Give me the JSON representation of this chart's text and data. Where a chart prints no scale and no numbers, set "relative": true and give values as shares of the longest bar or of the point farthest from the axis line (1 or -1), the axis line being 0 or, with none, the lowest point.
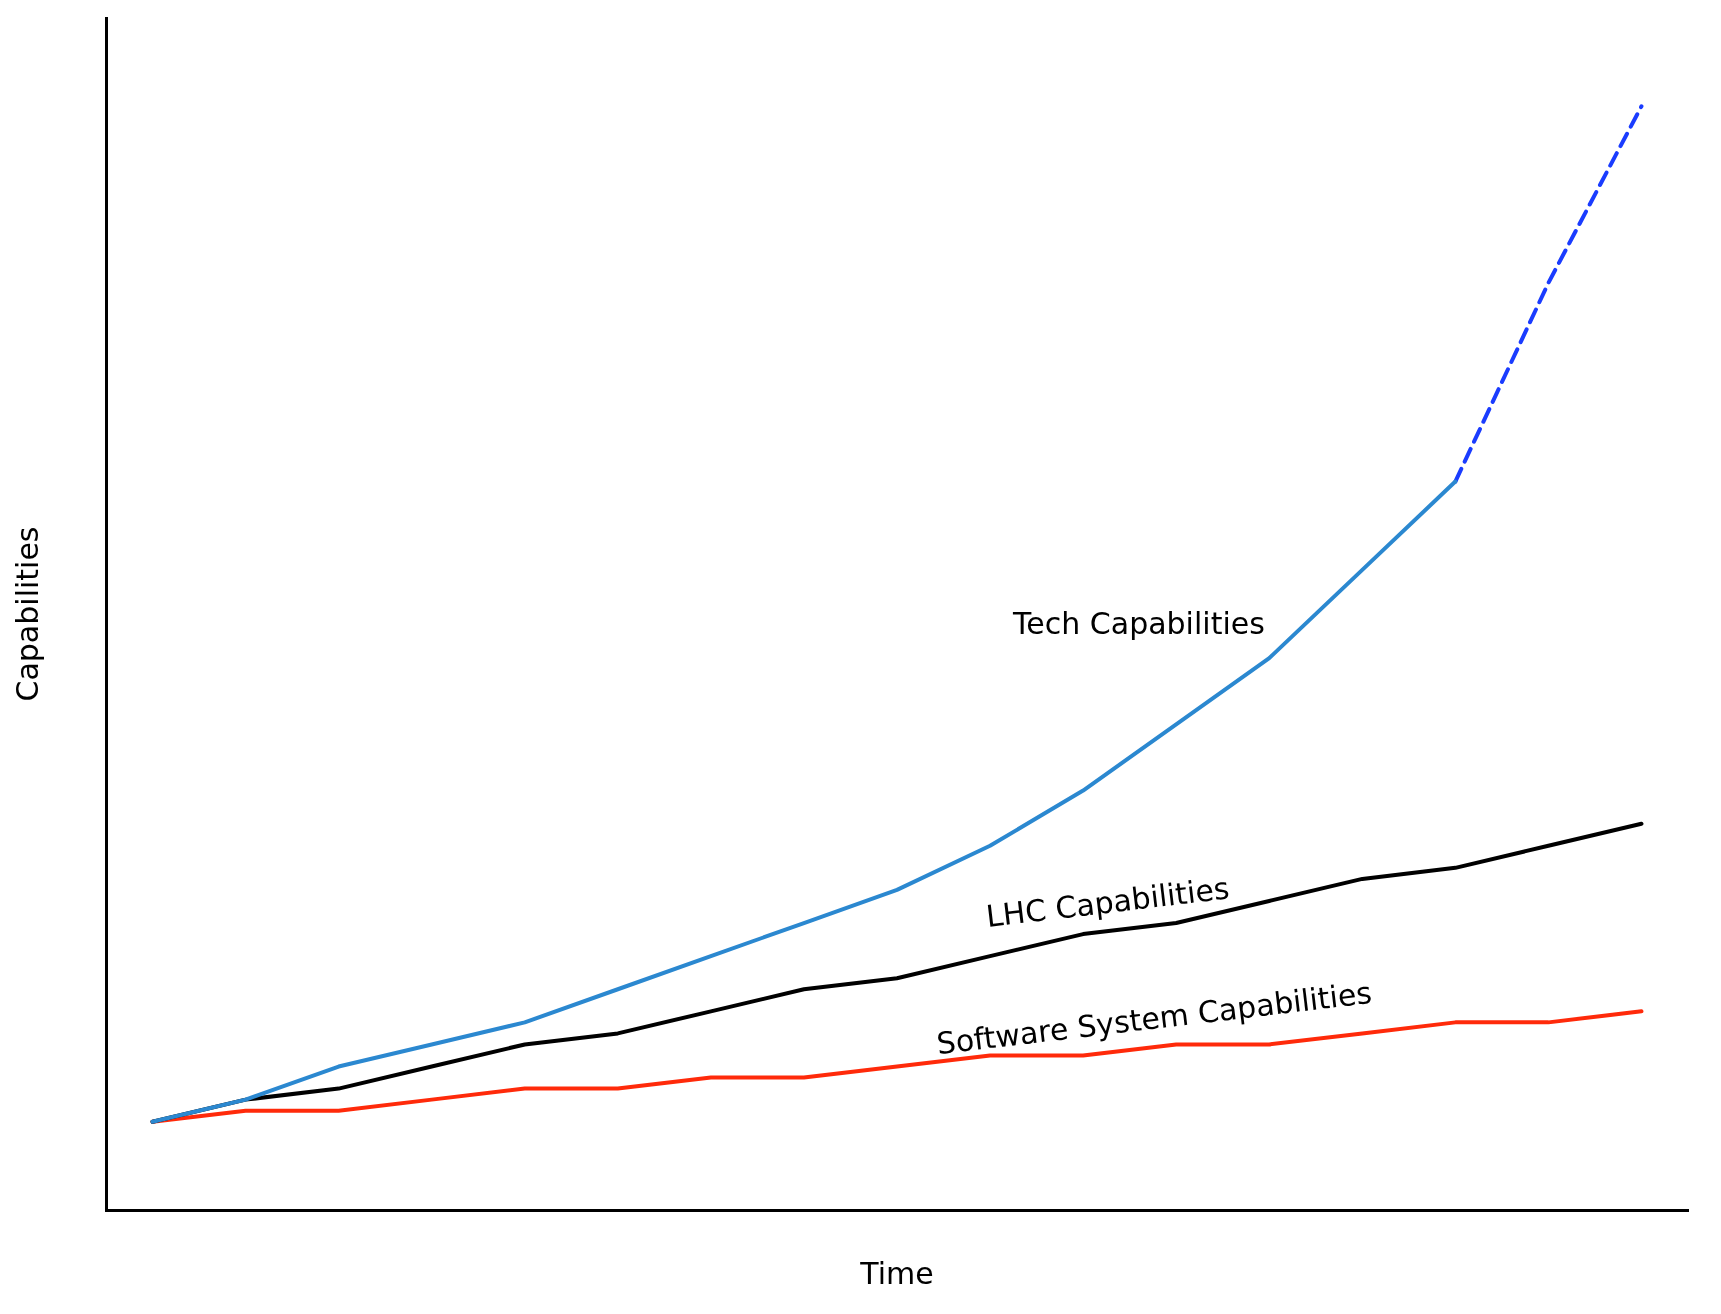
{
  "chart_data": {
    "type": "line",
    "xlabel": "Time",
    "ylabel": "Capabilities",
    "relative": true,
    "grid": false,
    "legend": false,
    "marker": "none",
    "categories": [
      null,
      null,
      null,
      null,
      null,
      null,
      null,
      null,
      null,
      null,
      null,
      null,
      null,
      null,
      null,
      null,
      null
    ],
    "series": [
      {
        "name": "Tech Capabilities",
        "color": "#2b88d0",
        "line_style": "solid",
        "values": [
          0.08,
          0.1,
          0.13,
          0.15,
          0.17,
          0.2,
          0.23,
          0.26,
          0.29,
          0.33,
          0.38,
          0.44,
          0.5,
          0.58,
          0.66,
          null,
          null
        ]
      },
      {
        "color": "#1a3cff",
        "line_style": "dashed",
        "values": [
          null,
          null,
          null,
          null,
          null,
          null,
          null,
          null,
          null,
          null,
          null,
          null,
          null,
          null,
          0.66,
          0.84,
          1
        ]
      },
      {
        "name": "LHC Capabilities",
        "color": "#000000",
        "line_style": "solid",
        "values": [
          0.08,
          0.1,
          0.11,
          0.13,
          0.15,
          0.16,
          0.18,
          0.2,
          0.21,
          0.23,
          0.25,
          0.26,
          0.28,
          0.3,
          0.31,
          0.33,
          0.35
        ]
      },
      {
        "name": "Software System Capabilities",
        "color": "#ff2a0a",
        "line_style": "solid",
        "values": [
          0.08,
          0.09,
          0.09,
          0.1,
          0.11,
          0.11,
          0.12,
          0.12,
          0.13,
          0.14,
          0.14,
          0.15,
          0.15,
          0.16,
          0.17,
          0.17,
          0.18
        ]
      }
    ]
  }
}
